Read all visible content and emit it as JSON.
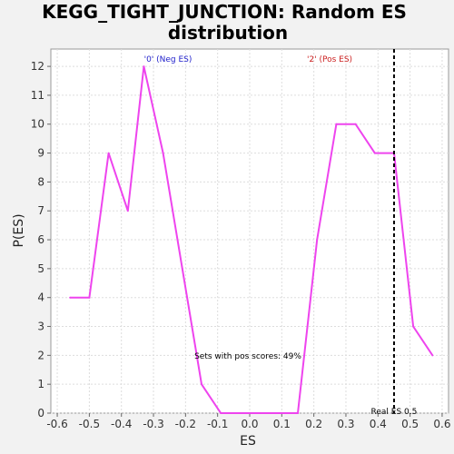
{
  "chart_data": {
    "type": "line",
    "title_line1": "KEGG_TIGHT_JUNCTION: Random ES",
    "title_line2": "distribution",
    "xlabel": "ES",
    "ylabel": "P(ES)",
    "xlim": [
      -0.62,
      0.62
    ],
    "ylim": [
      0,
      12.6
    ],
    "xticks": [
      "-0.6",
      "-0.5",
      "-0.4",
      "-0.3",
      "-0.2",
      "-0.1",
      "0.0",
      "0.1",
      "0.2",
      "0.3",
      "0.4",
      "0.5",
      "0.6"
    ],
    "yticks": [
      "0",
      "1",
      "2",
      "3",
      "4",
      "5",
      "6",
      "7",
      "8",
      "9",
      "10",
      "11",
      "12"
    ],
    "grid": true,
    "series": [
      {
        "color": "#ee44ee",
        "x": [
          -0.56,
          -0.5,
          -0.44,
          -0.38,
          -0.33,
          -0.27,
          -0.21,
          -0.15,
          -0.09,
          -0.03,
          0.03,
          0.09,
          0.15,
          0.21,
          0.27,
          0.33,
          0.39,
          0.45,
          0.51,
          0.57
        ],
        "y": [
          4,
          4,
          9,
          7,
          12,
          9,
          5,
          1,
          0,
          0,
          0,
          0,
          0,
          6,
          10,
          10,
          9,
          9,
          3,
          2
        ]
      }
    ],
    "real_es": 0.45,
    "annotations": {
      "neg_label": "'0' (Neg ES)",
      "pos_label": "'2' (Pos ES)",
      "pos_scores": "Sets with pos scores: 49%",
      "real_es_label": "Real ES 0.5"
    },
    "colors": {
      "neg": "#2222cc",
      "pos": "#cc2222"
    }
  }
}
